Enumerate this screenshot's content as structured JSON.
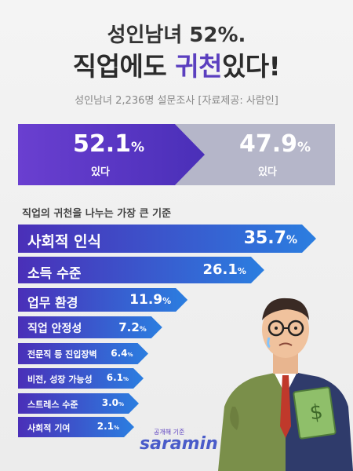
{
  "header": {
    "line1": "성인남녀 52%.",
    "line2_pre": "직업에도 ",
    "line2_highlight": "귀천",
    "line2_post": "있다!",
    "survey_note": "성인남녀 2,236명 설문조사 [자료제공: 사람인]"
  },
  "comparison": {
    "yes": {
      "value": "52.1",
      "unit": "%",
      "label": "있다"
    },
    "no": {
      "value": "47.9",
      "unit": "%",
      "label": "있다"
    }
  },
  "chart_data": {
    "type": "bar",
    "title": "직업의 귀천을 나누는 가장 큰 기준",
    "unit": "%",
    "categories": [
      "사회적 인식",
      "소득 수준",
      "업무 환경",
      "직업 안정성",
      "전문직 등 진입장벽",
      "비전, 성장 가능성",
      "스트레스 수준",
      "사회적 기여"
    ],
    "values": [
      35.7,
      26.1,
      11.9,
      7.2,
      6.4,
      6.1,
      3.0,
      2.1
    ]
  },
  "logo": {
    "tagline": "공개해 기준",
    "name": "saramin"
  },
  "colors": {
    "accent": "#5b3fbf",
    "bar_start": "#4a2fb8",
    "bar_end": "#2b7ee0",
    "no_bg": "#b5b6c9"
  }
}
